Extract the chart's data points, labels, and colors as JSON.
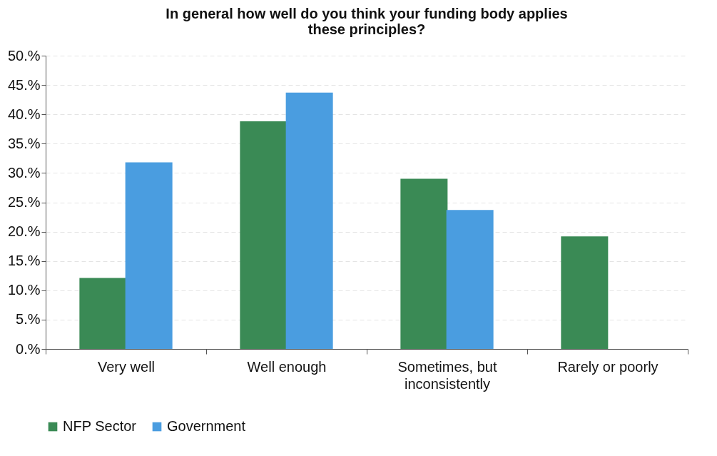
{
  "chart_data": {
    "type": "bar",
    "title": "In general how well do you think your funding body applies these principles?",
    "categories": [
      "Very well",
      "Well enough",
      "Sometimes, but inconsistently",
      "Rarely or poorly"
    ],
    "series": [
      {
        "name": "NFP Sector",
        "color": "#3a8a55",
        "values": [
          12.1,
          38.8,
          29.0,
          19.2
        ]
      },
      {
        "name": "Government",
        "color": "#4a9de0",
        "values": [
          31.8,
          43.7,
          23.7,
          null
        ]
      }
    ],
    "ylim": [
      0,
      50
    ],
    "yticks": [
      {
        "value": 0,
        "label": "0.%"
      },
      {
        "value": 5,
        "label": "5.%"
      },
      {
        "value": 10,
        "label": "10.%"
      },
      {
        "value": 15,
        "label": "15.%"
      },
      {
        "value": 20,
        "label": "20.%"
      },
      {
        "value": 25,
        "label": "25.%"
      },
      {
        "value": 30,
        "label": "30.%"
      },
      {
        "value": 35,
        "label": "35.%"
      },
      {
        "value": 40,
        "label": "40.%"
      },
      {
        "value": 45,
        "label": "45.%"
      },
      {
        "value": 50,
        "label": "50.%"
      }
    ],
    "grid": "y",
    "legend": "bottom"
  }
}
